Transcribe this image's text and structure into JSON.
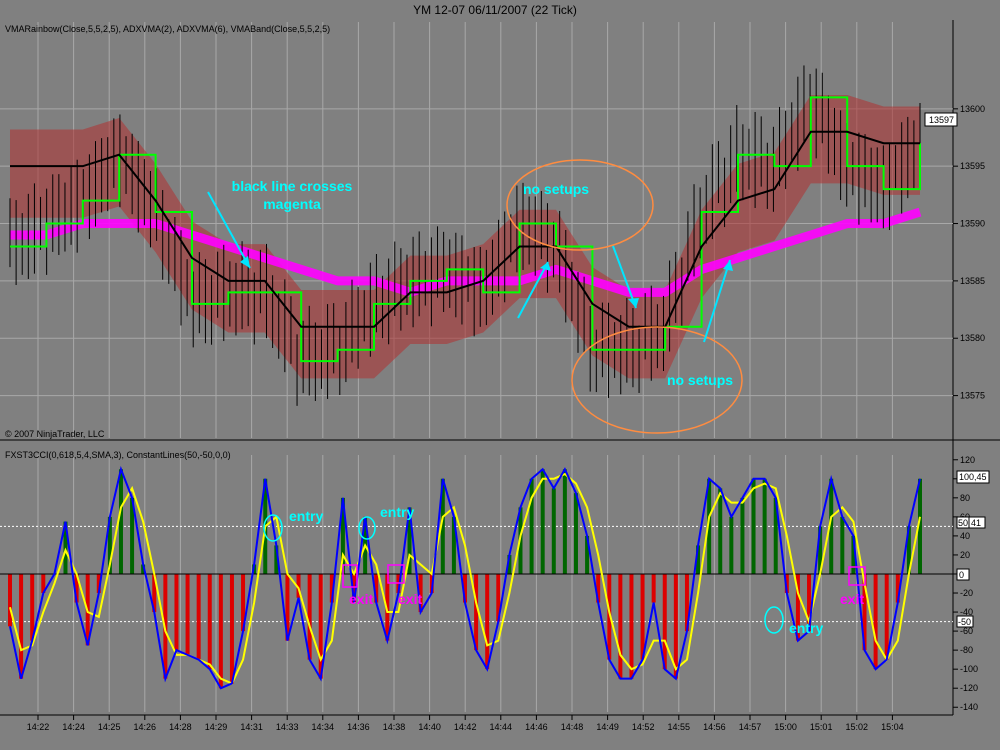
{
  "window": {
    "title": "YM 12-07  06/11/2007  (22 Tick)"
  },
  "upper_panel": {
    "indicator_label": "VMARainbow(Close,5,5,2,5), ADXVMA(2), ADXVMA(6), VMABand(Close,5,5,2,5)",
    "copyright": "© 2007 NinjaTrader, LLC",
    "last_price": "13597"
  },
  "lower_panel": {
    "indicator_label": "FXST3CCI(0,618,5,4,SMA,3), ConstantLines(50,-50,0,0)",
    "last_values": [
      "100,45",
      "50",
      "41",
      "0",
      "-50"
    ]
  },
  "annotations": {
    "black_line": "black line crosses",
    "magenta": "magenta",
    "no_setups_1": "no setups",
    "no_setups_2": "no setups",
    "entry": "entry",
    "exit": "exit"
  },
  "colors": {
    "background": "#808080",
    "price_bar": "#000000",
    "adxvma_fast": "#00ff00",
    "adxvma_slow": "#000000",
    "vma_band": "#b03030",
    "vma_rainbow": "#ff00ff",
    "cci_line": "#0000ff",
    "cci_signal": "#ffff00",
    "hist_pos": "#006600",
    "hist_neg": "#dd0000",
    "annotation_text": "#00ffff",
    "exit_text": "#ff00ff",
    "ellipse": "#ff8c40"
  },
  "chart_data": [
    {
      "type": "line",
      "name": "price",
      "x_labels": [
        "14:22",
        "14:24",
        "14:25",
        "14:26",
        "14:28",
        "14:29",
        "14:31",
        "14:33",
        "14:34",
        "14:36",
        "14:38",
        "14:40",
        "14:42",
        "14:44",
        "14:46",
        "14:48",
        "14:49",
        "14:52",
        "14:55",
        "14:56",
        "14:57",
        "15:00",
        "15:01",
        "15:02",
        "15:04"
      ],
      "y_ticks": [
        13575,
        13580,
        13585,
        13590,
        13595,
        13600
      ],
      "ylim": [
        13572,
        13606
      ],
      "series": [
        {
          "values": [
            13588,
            13590,
            13592,
            13596,
            13591,
            13583,
            13584,
            13584,
            13578,
            13579,
            13583,
            13585,
            13586,
            13584,
            13590,
            13588,
            13579,
            13579,
            13581,
            13591,
            13596,
            13595,
            13601,
            13595,
            13593,
            13597
          ]
        },
        {
          "values": [
            13595,
            13595,
            13595,
            13596,
            13592,
            13587,
            13585,
            13585,
            13581,
            13581,
            13581,
            13584,
            13584,
            13585,
            13588,
            13588,
            13583,
            13581,
            13581,
            13588,
            13592,
            13593,
            13598,
            13598,
            13597,
            13597
          ]
        },
        {
          "values": [
            13589,
            13589,
            13590,
            13590,
            13590,
            13589,
            13588,
            13587,
            13586,
            13585,
            13585,
            13584,
            13585,
            13585,
            13585,
            13586,
            13585,
            13584,
            13584,
            13586,
            13587,
            13588,
            13589,
            13590,
            13590,
            13591
          ]
        }
      ]
    },
    {
      "type": "bar",
      "name": "cci",
      "y_ticks": [
        120,
        100,
        80,
        60,
        40,
        20,
        0,
        -20,
        -40,
        -60,
        -80,
        -100,
        -120,
        -140
      ],
      "ylim": [
        -145,
        125
      ],
      "series": [
        {
          "values": [
            -55,
            -110,
            -70,
            -20,
            0,
            55,
            -30,
            -75,
            -20,
            60,
            110,
            80,
            10,
            -40,
            -110,
            -80,
            -85,
            -90,
            -100,
            -120,
            -115,
            -60,
            10,
            100,
            30,
            -70,
            -25,
            -90,
            -110,
            -30,
            80,
            -30,
            60,
            -30,
            -70,
            -20,
            70,
            -40,
            -20,
            100,
            60,
            -30,
            -80,
            -100,
            -50,
            20,
            70,
            100,
            110,
            90,
            110,
            85,
            40,
            -30,
            -90,
            -110,
            -110,
            -90,
            -30,
            -100,
            -110,
            -60,
            30,
            100,
            90,
            60,
            80,
            100,
            100,
            80,
            -20,
            -70,
            -60,
            50,
            100,
            60,
            40,
            -80,
            -100,
            -90,
            -30,
            50,
            100
          ]
        },
        {
          "values": [
            -35,
            -80,
            -75,
            -40,
            -10,
            25,
            0,
            -40,
            -45,
            10,
            70,
            90,
            55,
            0,
            -60,
            -85,
            -85,
            -90,
            -95,
            -110,
            -115,
            -90,
            -30,
            50,
            60,
            0,
            -15,
            -55,
            -90,
            -70,
            20,
            0,
            30,
            10,
            -40,
            -40,
            20,
            10,
            0,
            60,
            70,
            30,
            -30,
            -75,
            -70,
            -20,
            40,
            80,
            100,
            100,
            105,
            95,
            70,
            20,
            -40,
            -85,
            -100,
            -95,
            -70,
            -70,
            -100,
            -90,
            -20,
            60,
            85,
            75,
            75,
            90,
            95,
            90,
            40,
            -20,
            -50,
            0,
            60,
            70,
            55,
            -10,
            -70,
            -90,
            -70,
            0,
            60
          ]
        }
      ],
      "constant_lines": [
        50,
        -50,
        0
      ]
    }
  ]
}
